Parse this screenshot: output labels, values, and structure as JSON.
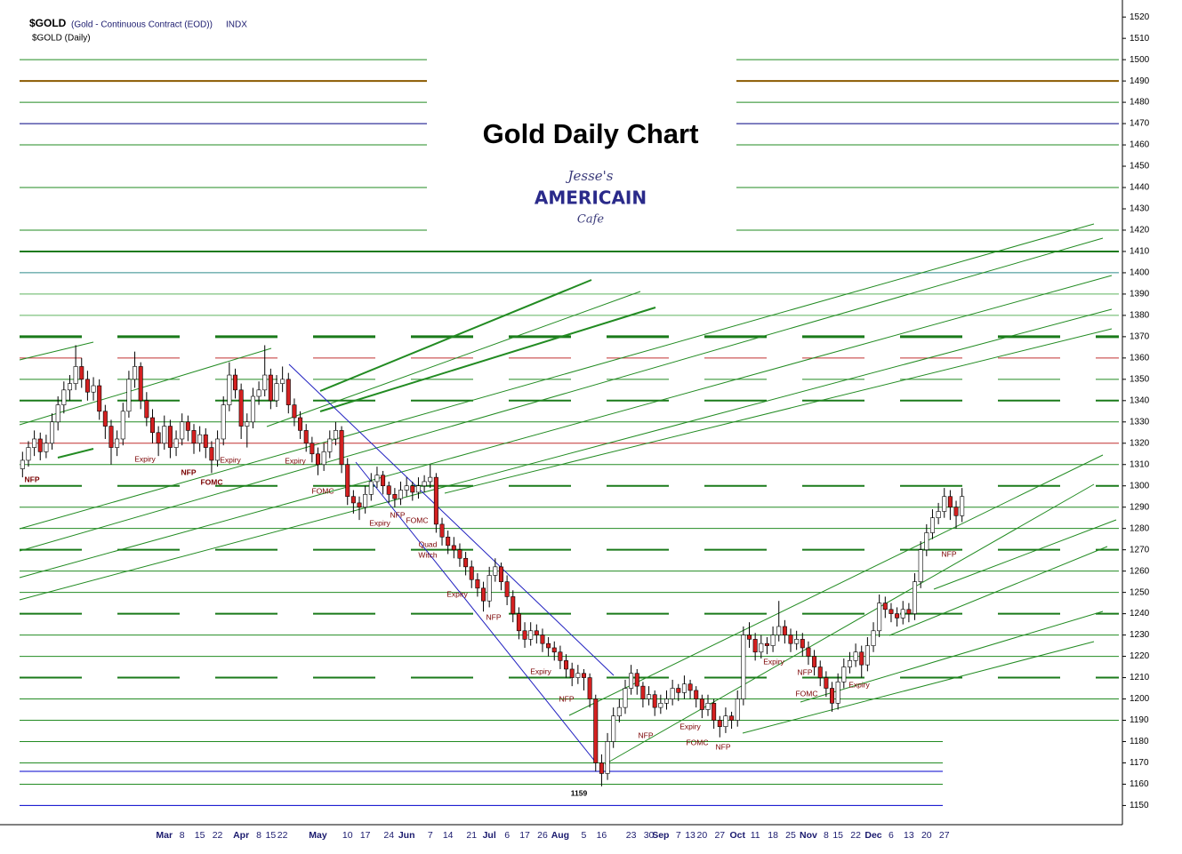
{
  "chart_data": {
    "type": "candlestick",
    "symbol": "$GOLD",
    "description": "(Gold - Continuous Contract (EOD))",
    "exchange": "INDX",
    "subtitle": "$GOLD (Daily)",
    "title": "Gold Daily Chart",
    "logo": [
      "Jesse's",
      "AMERICAIN",
      "Cafe"
    ],
    "ylim": [
      1141,
      1528
    ],
    "yticks": [
      1150,
      1160,
      1170,
      1180,
      1190,
      1200,
      1210,
      1220,
      1230,
      1240,
      1250,
      1260,
      1270,
      1280,
      1290,
      1300,
      1310,
      1320,
      1330,
      1340,
      1350,
      1360,
      1370,
      1380,
      1390,
      1400,
      1410,
      1420,
      1430,
      1440,
      1450,
      1460,
      1470,
      1480,
      1490,
      1500,
      1510,
      1520
    ],
    "up_color": "#ffffff",
    "down_color": "#d42020",
    "categories": [
      null,
      null,
      null,
      null,
      null,
      null,
      null,
      null,
      null,
      null,
      null,
      null,
      null,
      null,
      null,
      null,
      null,
      null,
      null,
      null,
      null,
      null,
      null,
      null,
      "Mar",
      null,
      null,
      "8",
      null,
      null,
      "15",
      null,
      null,
      "22",
      null,
      null,
      null,
      "Apr",
      null,
      null,
      "8",
      null,
      "15",
      null,
      "22",
      null,
      null,
      null,
      null,
      null,
      "May",
      null,
      null,
      null,
      null,
      "10",
      null,
      null,
      "17",
      null,
      null,
      null,
      "24",
      null,
      null,
      "Jun",
      null,
      null,
      null,
      "7",
      null,
      null,
      "14",
      null,
      null,
      null,
      "21",
      null,
      null,
      "Jul",
      null,
      null,
      "6",
      null,
      null,
      "17",
      null,
      null,
      "26",
      null,
      null,
      "Aug",
      null,
      null,
      null,
      "5",
      null,
      null,
      "16",
      null,
      null,
      null,
      null,
      "23",
      null,
      null,
      "30",
      null,
      "Sep",
      null,
      null,
      "7",
      null,
      "13",
      null,
      "20",
      null,
      null,
      "27",
      null,
      null,
      "Oct",
      null,
      null,
      "11",
      null,
      null,
      "18",
      null,
      null,
      "25",
      null,
      null,
      "Nov",
      null,
      null,
      "8",
      null,
      "15",
      null,
      null,
      "22",
      null,
      null,
      "Dec",
      null,
      null,
      "6",
      null,
      null,
      "13",
      null,
      null,
      "20",
      null,
      null,
      "27",
      null,
      null,
      null
    ],
    "candles": [
      [
        1308,
        1316,
        1304,
        1312
      ],
      [
        1312,
        1321,
        1309,
        1318
      ],
      [
        1318,
        1326,
        1314,
        1322
      ],
      [
        1322,
        1325,
        1312,
        1316
      ],
      [
        1316,
        1324,
        1313,
        1320
      ],
      [
        1320,
        1334,
        1317,
        1330
      ],
      [
        1330,
        1342,
        1326,
        1338
      ],
      [
        1338,
        1349,
        1334,
        1345
      ],
      [
        1345,
        1352,
        1340,
        1348
      ],
      [
        1348,
        1366,
        1345,
        1356
      ],
      [
        1356,
        1360,
        1346,
        1350
      ],
      [
        1350,
        1354,
        1340,
        1344
      ],
      [
        1344,
        1351,
        1340,
        1347
      ],
      [
        1347,
        1350,
        1331,
        1335
      ],
      [
        1335,
        1338,
        1322,
        1328
      ],
      [
        1328,
        1331,
        1310,
        1318
      ],
      [
        1318,
        1326,
        1314,
        1322
      ],
      [
        1322,
        1339,
        1319,
        1335
      ],
      [
        1335,
        1354,
        1332,
        1350
      ],
      [
        1350,
        1363,
        1346,
        1356
      ],
      [
        1356,
        1358,
        1336,
        1340
      ],
      [
        1340,
        1344,
        1328,
        1332
      ],
      [
        1332,
        1336,
        1320,
        1325
      ],
      [
        1325,
        1328,
        1314,
        1320
      ],
      [
        1320,
        1333,
        1317,
        1328
      ],
      [
        1328,
        1331,
        1313,
        1318
      ],
      [
        1318,
        1326,
        1314,
        1322
      ],
      [
        1322,
        1334,
        1319,
        1330
      ],
      [
        1330,
        1333,
        1321,
        1326
      ],
      [
        1326,
        1329,
        1315,
        1320
      ],
      [
        1320,
        1328,
        1316,
        1324
      ],
      [
        1324,
        1327,
        1313,
        1318
      ],
      [
        1318,
        1321,
        1306,
        1312
      ],
      [
        1312,
        1326,
        1309,
        1322
      ],
      [
        1322,
        1342,
        1319,
        1338
      ],
      [
        1338,
        1358,
        1335,
        1352
      ],
      [
        1352,
        1355,
        1341,
        1345
      ],
      [
        1345,
        1348,
        1322,
        1328
      ],
      [
        1328,
        1334,
        1318,
        1330
      ],
      [
        1330,
        1346,
        1327,
        1342
      ],
      [
        1342,
        1349,
        1338,
        1345
      ],
      [
        1345,
        1366,
        1342,
        1352
      ],
      [
        1352,
        1355,
        1336,
        1340
      ],
      [
        1340,
        1352,
        1337,
        1348
      ],
      [
        1348,
        1356,
        1344,
        1350
      ],
      [
        1350,
        1353,
        1334,
        1338
      ],
      [
        1338,
        1341,
        1328,
        1332
      ],
      [
        1332,
        1335,
        1322,
        1326
      ],
      [
        1326,
        1329,
        1316,
        1320
      ],
      [
        1320,
        1323,
        1311,
        1315
      ],
      [
        1315,
        1318,
        1305,
        1310
      ],
      [
        1310,
        1320,
        1307,
        1316
      ],
      [
        1316,
        1326,
        1313,
        1322
      ],
      [
        1322,
        1330,
        1319,
        1326
      ],
      [
        1326,
        1328,
        1306,
        1310
      ],
      [
        1310,
        1313,
        1291,
        1295
      ],
      [
        1295,
        1298,
        1287,
        1292
      ],
      [
        1292,
        1295,
        1284,
        1290
      ],
      [
        1290,
        1300,
        1287,
        1296
      ],
      [
        1296,
        1306,
        1293,
        1302
      ],
      [
        1302,
        1309,
        1299,
        1305
      ],
      [
        1305,
        1307,
        1296,
        1300
      ],
      [
        1300,
        1302,
        1292,
        1296
      ],
      [
        1296,
        1299,
        1290,
        1294
      ],
      [
        1294,
        1302,
        1291,
        1298
      ],
      [
        1298,
        1304,
        1295,
        1300
      ],
      [
        1300,
        1302,
        1293,
        1297
      ],
      [
        1297,
        1304,
        1294,
        1300
      ],
      [
        1300,
        1305,
        1297,
        1302
      ],
      [
        1302,
        1310,
        1299,
        1304
      ],
      [
        1304,
        1306,
        1278,
        1282
      ],
      [
        1282,
        1285,
        1272,
        1276
      ],
      [
        1276,
        1279,
        1268,
        1272
      ],
      [
        1272,
        1276,
        1266,
        1270
      ],
      [
        1270,
        1273,
        1262,
        1266
      ],
      [
        1266,
        1269,
        1258,
        1262
      ],
      [
        1262,
        1265,
        1252,
        1256
      ],
      [
        1256,
        1259,
        1248,
        1252
      ],
      [
        1252,
        1255,
        1241,
        1246
      ],
      [
        1246,
        1262,
        1243,
        1258
      ],
      [
        1258,
        1266,
        1255,
        1262
      ],
      [
        1262,
        1264,
        1251,
        1255
      ],
      [
        1255,
        1258,
        1244,
        1248
      ],
      [
        1248,
        1251,
        1236,
        1240
      ],
      [
        1240,
        1243,
        1228,
        1232
      ],
      [
        1232,
        1236,
        1224,
        1228
      ],
      [
        1228,
        1236,
        1225,
        1232
      ],
      [
        1232,
        1235,
        1226,
        1230
      ],
      [
        1230,
        1233,
        1222,
        1226
      ],
      [
        1226,
        1229,
        1220,
        1224
      ],
      [
        1224,
        1227,
        1218,
        1222
      ],
      [
        1222,
        1225,
        1214,
        1218
      ],
      [
        1218,
        1221,
        1210,
        1214
      ],
      [
        1214,
        1217,
        1206,
        1210
      ],
      [
        1210,
        1216,
        1207,
        1212
      ],
      [
        1212,
        1214,
        1204,
        1210
      ],
      [
        1210,
        1212,
        1196,
        1200
      ],
      [
        1200,
        1202,
        1166,
        1170
      ],
      [
        1170,
        1174,
        1159,
        1165
      ],
      [
        1165,
        1184,
        1162,
        1180
      ],
      [
        1180,
        1196,
        1177,
        1192
      ],
      [
        1192,
        1200,
        1189,
        1196
      ],
      [
        1196,
        1209,
        1193,
        1205
      ],
      [
        1205,
        1216,
        1202,
        1212
      ],
      [
        1212,
        1214,
        1202,
        1206
      ],
      [
        1206,
        1208,
        1196,
        1200
      ],
      [
        1200,
        1206,
        1197,
        1202
      ],
      [
        1202,
        1204,
        1192,
        1196
      ],
      [
        1196,
        1202,
        1193,
        1198
      ],
      [
        1198,
        1204,
        1195,
        1200
      ],
      [
        1200,
        1209,
        1197,
        1205
      ],
      [
        1205,
        1207,
        1199,
        1203
      ],
      [
        1203,
        1211,
        1200,
        1207
      ],
      [
        1207,
        1209,
        1200,
        1204
      ],
      [
        1204,
        1206,
        1196,
        1200
      ],
      [
        1200,
        1202,
        1191,
        1195
      ],
      [
        1195,
        1202,
        1192,
        1198
      ],
      [
        1198,
        1200,
        1186,
        1190
      ],
      [
        1190,
        1192,
        1182,
        1187
      ],
      [
        1187,
        1196,
        1184,
        1192
      ],
      [
        1192,
        1194,
        1186,
        1190
      ],
      [
        1190,
        1204,
        1187,
        1200
      ],
      [
        1200,
        1234,
        1197,
        1230
      ],
      [
        1230,
        1236,
        1224,
        1228
      ],
      [
        1228,
        1231,
        1218,
        1222
      ],
      [
        1222,
        1230,
        1219,
        1226
      ],
      [
        1226,
        1229,
        1221,
        1225
      ],
      [
        1225,
        1234,
        1222,
        1230
      ],
      [
        1230,
        1246,
        1227,
        1234
      ],
      [
        1234,
        1237,
        1226,
        1230
      ],
      [
        1230,
        1233,
        1222,
        1226
      ],
      [
        1226,
        1232,
        1223,
        1228
      ],
      [
        1228,
        1231,
        1220,
        1224
      ],
      [
        1224,
        1227,
        1216,
        1220
      ],
      [
        1220,
        1223,
        1211,
        1215
      ],
      [
        1215,
        1218,
        1206,
        1210
      ],
      [
        1210,
        1213,
        1201,
        1205
      ],
      [
        1205,
        1208,
        1194,
        1198
      ],
      [
        1198,
        1212,
        1195,
        1208
      ],
      [
        1208,
        1219,
        1205,
        1215
      ],
      [
        1215,
        1222,
        1212,
        1218
      ],
      [
        1218,
        1226,
        1215,
        1222
      ],
      [
        1222,
        1225,
        1210,
        1216
      ],
      [
        1216,
        1229,
        1213,
        1225
      ],
      [
        1225,
        1236,
        1222,
        1232
      ],
      [
        1232,
        1249,
        1229,
        1245
      ],
      [
        1245,
        1248,
        1238,
        1242
      ],
      [
        1242,
        1245,
        1236,
        1240
      ],
      [
        1240,
        1243,
        1234,
        1238
      ],
      [
        1238,
        1246,
        1235,
        1242
      ],
      [
        1242,
        1245,
        1236,
        1240
      ],
      [
        1240,
        1259,
        1237,
        1255
      ],
      [
        1255,
        1274,
        1252,
        1270
      ],
      [
        1270,
        1282,
        1267,
        1278
      ],
      [
        1278,
        1289,
        1275,
        1285
      ],
      [
        1285,
        1292,
        1282,
        1288
      ],
      [
        1288,
        1299,
        1285,
        1295
      ],
      [
        1295,
        1298,
        1284,
        1290
      ],
      [
        1290,
        1293,
        1280,
        1286
      ],
      [
        1286,
        1299,
        1283,
        1295
      ]
    ],
    "levels": [
      {
        "value": 1500,
        "color": "#228b22",
        "width": 1
      },
      {
        "value": 1490,
        "color": "#8b5a00",
        "width": 2
      },
      {
        "value": 1480,
        "color": "#228b22",
        "width": 1
      },
      {
        "value": 1470,
        "color": "#000080",
        "width": 1
      },
      {
        "value": 1460,
        "color": "#228b22",
        "width": 1
      },
      {
        "value": 1440,
        "color": "#228b22",
        "width": 1
      },
      {
        "value": 1420,
        "color": "#228b22",
        "width": 1
      },
      {
        "value": 1410,
        "color": "#1a7a1a",
        "width": 2
      },
      {
        "value": 1400,
        "color": "#2e8b8b",
        "width": 1
      },
      {
        "value": 1390,
        "color": "#5fb35f",
        "width": 1
      },
      {
        "value": 1380,
        "color": "#5fb35f",
        "width": 1
      },
      {
        "value": 1370,
        "color": "#1a7a1a",
        "width": 3,
        "dashed": true
      },
      {
        "value": 1360,
        "color": "#c03030",
        "width": 1,
        "dashed": true
      },
      {
        "value": 1350,
        "color": "#228b22",
        "width": 1,
        "dashed": true
      },
      {
        "value": 1340,
        "color": "#1a7a1a",
        "width": 2,
        "dashed": true
      },
      {
        "value": 1330,
        "color": "#228b22",
        "width": 1
      },
      {
        "value": 1320,
        "color": "#c03030",
        "width": 1
      },
      {
        "value": 1310,
        "color": "#228b22",
        "width": 1
      },
      {
        "value": 1300,
        "color": "#1a7a1a",
        "width": 2,
        "dashed": true
      },
      {
        "value": 1290,
        "color": "#228b22",
        "width": 1
      },
      {
        "value": 1280,
        "color": "#228b22",
        "width": 1
      },
      {
        "value": 1270,
        "color": "#1a7a1a",
        "width": 2,
        "dashed": true
      },
      {
        "value": 1260,
        "color": "#228b22",
        "width": 1
      },
      {
        "value": 1250,
        "color": "#228b22",
        "width": 1
      },
      {
        "value": 1240,
        "color": "#1a7a1a",
        "width": 2,
        "dashed": true
      },
      {
        "value": 1230,
        "color": "#228b22",
        "width": 1
      },
      {
        "value": 1220,
        "color": "#228b22",
        "width": 1
      },
      {
        "value": 1210,
        "color": "#1a7a1a",
        "width": 2,
        "dashed": true
      },
      {
        "value": 1200,
        "color": "#228b22",
        "width": 1
      },
      {
        "value": 1190,
        "color": "#228b22",
        "width": 1
      },
      {
        "value": 1180,
        "color": "#228b22",
        "width": 1
      },
      {
        "value": 1170,
        "color": "#228b22",
        "width": 1
      },
      {
        "value": 1166,
        "color": "#0000cc",
        "width": 1
      },
      {
        "value": 1160,
        "color": "#228b22",
        "width": 1
      },
      {
        "value": 1150,
        "color": "#0000cc",
        "width": 1
      }
    ],
    "annotations": [
      "NFP",
      "Expiry",
      "NFP",
      "FOMC",
      "Expiry",
      "Expiry",
      "FOMC",
      "NFP",
      "Expiry",
      "FOMC",
      "Quad",
      "Witch",
      "Expiry",
      "NFP",
      "Expiry",
      "NFP",
      "1159",
      "NFP",
      "Expiry",
      "FOMC",
      "NFP",
      "Expiry",
      "NFP",
      "FOMC",
      "Expiry",
      "NFP"
    ]
  }
}
